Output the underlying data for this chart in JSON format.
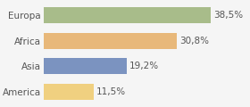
{
  "categories": [
    "Europa",
    "Africa",
    "Asia",
    "America"
  ],
  "values": [
    38.5,
    30.8,
    19.2,
    11.5
  ],
  "labels": [
    "38,5%",
    "30,8%",
    "19,2%",
    "11,5%"
  ],
  "bar_colors": [
    "#a8bc8a",
    "#e8b87a",
    "#7b93c0",
    "#f0d080"
  ],
  "background_color": "#f5f5f5",
  "xlim": [
    0,
    47
  ],
  "bar_height": 0.62,
  "label_fontsize": 7.5,
  "tick_fontsize": 7.5
}
